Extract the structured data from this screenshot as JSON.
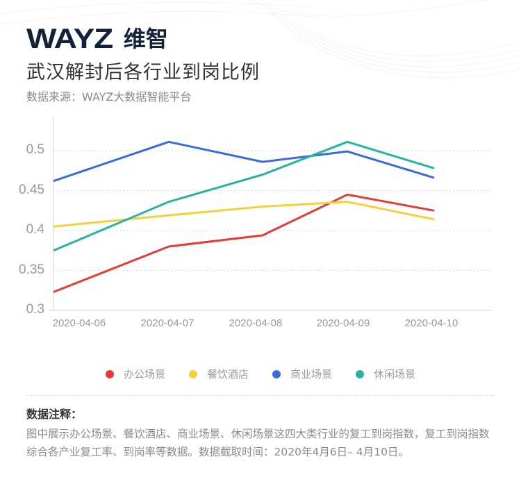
{
  "header": {
    "logo_en": "WAYZ",
    "logo_cn": "维智",
    "title": "武汉解封后各行业到岗比例",
    "source": "数据来源：WAYZ大数据智能平台"
  },
  "legend": {
    "items": [
      {
        "label": "办公场景",
        "color": "#e63a35"
      },
      {
        "label": "餐饮酒店",
        "color": "#f6d03a"
      },
      {
        "label": "商业场景",
        "color": "#3a6ae0"
      },
      {
        "label": "休闲场景",
        "color": "#26b3a2"
      }
    ]
  },
  "notes": {
    "title": "数据注释：",
    "body": "图中展示办公场景、餐饮酒店、商业场景、休闲场景这四大类行业的复工到岗指数，复工到岗指数综合各产业复工率、到岗率等数据。数据截取时间：2020年4月6日– 4月10日。"
  },
  "chart_data": {
    "type": "line",
    "title": "武汉解封后各行业到岗比例",
    "subtitle": "数据来源：WAYZ大数据智能平台",
    "xlabel": "",
    "ylabel": "",
    "categories": [
      "2020-04-06",
      "2020-04-07",
      "2020-04-08",
      "2020-04-09",
      "2020-04-10"
    ],
    "yticks": [
      "0.3",
      "0.35",
      "0.4",
      "0.45",
      "0.5"
    ],
    "ylim": [
      0.3,
      0.54
    ],
    "grid": "horizontal dashed",
    "legend_position": "bottom",
    "series": [
      {
        "name": "办公场景",
        "color": "#e63a35",
        "values": [
          0.323,
          0.38,
          0.394,
          0.445,
          0.425
        ]
      },
      {
        "name": "餐饮酒店",
        "color": "#f6d03a",
        "values": [
          0.405,
          0.419,
          0.43,
          0.436,
          0.414
        ]
      },
      {
        "name": "商业场景",
        "color": "#3a6ae0",
        "values": [
          0.462,
          0.511,
          0.486,
          0.499,
          0.466
        ]
      },
      {
        "name": "休闲场景",
        "color": "#26b3a2",
        "values": [
          0.375,
          0.436,
          0.47,
          0.511,
          0.478
        ]
      }
    ]
  }
}
